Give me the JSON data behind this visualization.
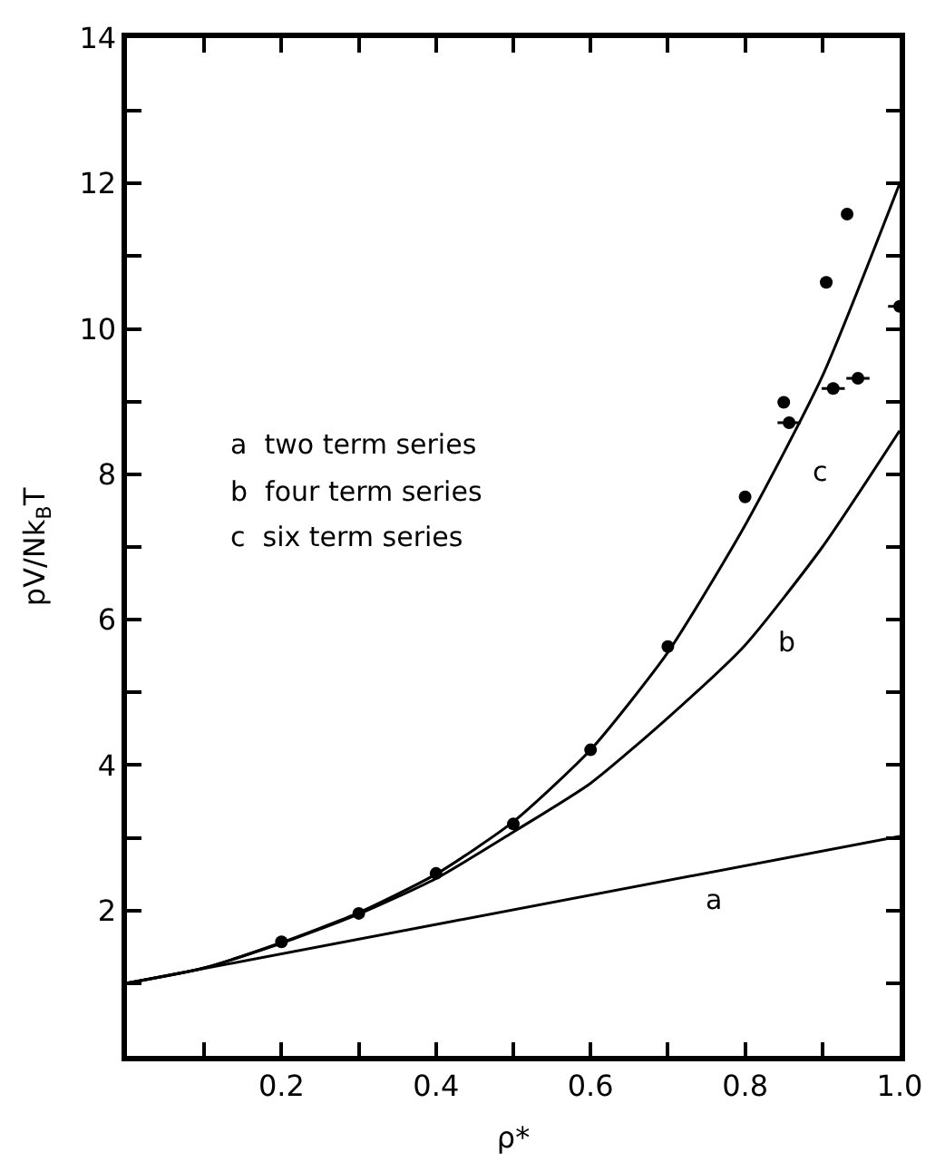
{
  "chart_data": {
    "type": "line",
    "xlabel": "ρ*",
    "ylabel": "pV/Nk$_{B}$T",
    "xlim": [
      0,
      1.0
    ],
    "ylim": [
      0,
      14
    ],
    "xticks": [
      {
        "value": 0.1,
        "label": null
      },
      0.2,
      {
        "value": 0.3,
        "label": null
      },
      0.4,
      {
        "value": 0.5,
        "label": null
      },
      0.6,
      {
        "value": 0.7,
        "label": null
      },
      0.8,
      {
        "value": 0.9,
        "label": null
      },
      {
        "value": 1.0,
        "label": "1.0"
      }
    ],
    "yticks": [
      {
        "value": 1,
        "label": null
      },
      2,
      {
        "value": 3,
        "label": null
      },
      4,
      {
        "value": 5,
        "label": null
      },
      6,
      {
        "value": 7,
        "label": null
      },
      8,
      {
        "value": 9,
        "label": null
      },
      10,
      {
        "value": 11,
        "label": null
      },
      12,
      {
        "value": 13,
        "label": null
      },
      14
    ],
    "series": [
      {
        "color": "#000000",
        "marker": "none",
        "x": [
          0,
          1.0
        ],
        "values": [
          1,
          3.02
        ]
      },
      {
        "color": "#000000",
        "marker": "none",
        "x": [
          0,
          0.1,
          0.2,
          0.3,
          0.4,
          0.5,
          0.6,
          0.7,
          0.8,
          0.9,
          1.0
        ],
        "values": [
          1,
          1.21,
          1.55,
          1.95,
          2.44,
          3.08,
          3.75,
          4.65,
          5.65,
          7.0,
          8.6
        ]
      },
      {
        "color": "#000000",
        "marker": "none",
        "x": [
          0,
          0.1,
          0.2,
          0.3,
          0.4,
          0.5,
          0.6,
          0.7,
          0.8,
          0.9,
          1.0
        ],
        "values": [
          1,
          1.21,
          1.56,
          1.97,
          2.5,
          3.22,
          4.21,
          5.55,
          7.3,
          9.35,
          12.0
        ]
      },
      {
        "type": "scatter",
        "color": "#000000",
        "marker": "circle",
        "x": [
          0.2,
          0.3,
          0.4,
          0.5,
          0.6,
          0.7,
          0.8,
          0.85,
          0.857,
          0.905,
          0.932,
          0.914,
          0.946,
          1.0
        ],
        "values": [
          1.57,
          1.96,
          2.51,
          3.19,
          4.21,
          5.63,
          7.69,
          8.99,
          8.71,
          10.64,
          11.58,
          9.18,
          9.32,
          10.31
        ],
        "xerrors": [
          null,
          null,
          null,
          null,
          null,
          null,
          null,
          null,
          0.015,
          null,
          null,
          0.015,
          0.015,
          0.015
        ]
      }
    ],
    "annotations": [
      {
        "text": "a",
        "x": 0.76,
        "y": 2.54
      },
      {
        "text": "b",
        "x": 0.83,
        "y": 6.05
      },
      {
        "text": "c",
        "x": 0.86,
        "y": 8.53
      },
      "a  two term series",
      "b  four term series",
      "c  six term series"
    ]
  }
}
